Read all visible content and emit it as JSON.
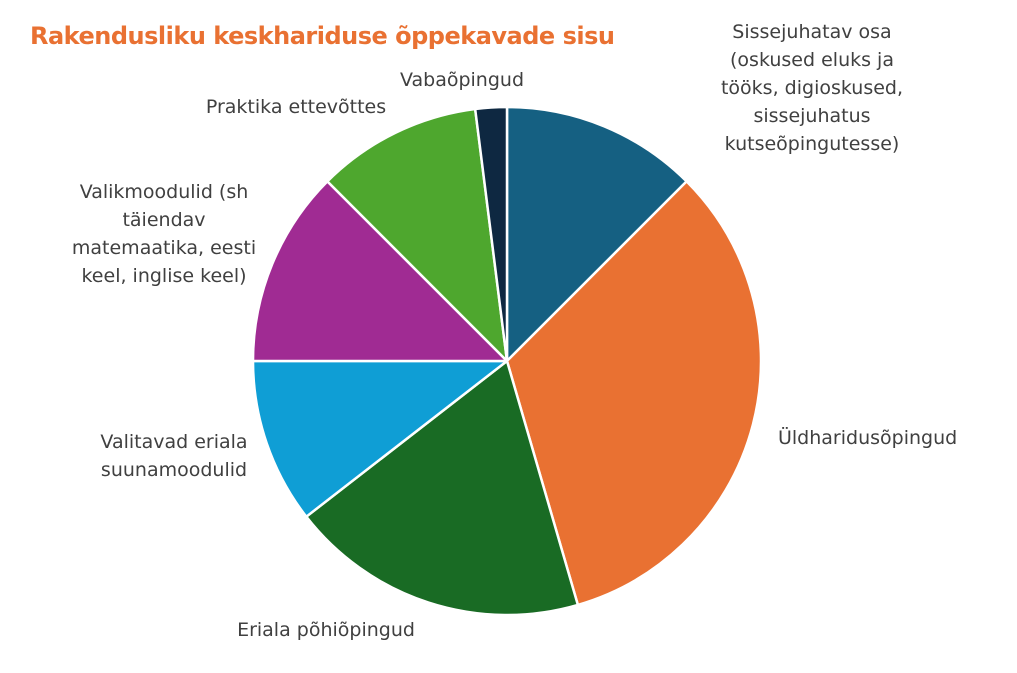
{
  "title": "Rakendusliku keskhariduse õppekavade sisu",
  "colors": {
    "title": "#E97132",
    "slice_border": "#ffffff",
    "label_text": "#404040"
  },
  "chart_data": {
    "type": "pie",
    "title": "Rakendusliku keskhariduse õppekavade sisu",
    "start_angle_deg": 0,
    "direction": "clockwise",
    "legend": "none",
    "slices": [
      {
        "label": "Sissejuhatav osa (oskused eluks ja tööks, digioskused, sissejuhatus kutseõpingutesse)",
        "value": 12.5,
        "color": "#156082"
      },
      {
        "label": "Üldharidusõpingud",
        "value": 33.0,
        "color": "#E97132"
      },
      {
        "label": "Eriala põhiõpingud",
        "value": 19.0,
        "color": "#196B24"
      },
      {
        "label": "Valitavad eriala suunamoodulid",
        "value": 10.5,
        "color": "#0F9ED5"
      },
      {
        "label": "Valikmoodulid (sh täiendav matemaatika, eesti keel, inglise keel)",
        "value": 12.5,
        "color": "#A02B93"
      },
      {
        "label": "Praktika ettevõttes",
        "value": 10.5,
        "color": "#4EA72E"
      },
      {
        "label": "Vabaõpingud",
        "value": 2.0,
        "color": "#0E2841"
      }
    ]
  },
  "labels": [
    {
      "lines": [
        "Sissejuhatav osa",
        "(oskused eluks ja",
        "tööks, digioskused,",
        "sissejuhatus",
        "kutseõpingutesse)"
      ]
    },
    {
      "lines": [
        "Üldharidusõpingud"
      ]
    },
    {
      "lines": [
        "Eriala põhiõpingud"
      ]
    },
    {
      "lines": [
        "Valitavad eriala",
        "suunamoodulid"
      ]
    },
    {
      "lines": [
        "Valikmoodulid (sh",
        "täiendav",
        "matemaatika, eesti",
        "keel, inglise keel)"
      ]
    },
    {
      "lines": [
        "Praktika ettevõttes"
      ]
    },
    {
      "lines": [
        "Vabaõpingud"
      ]
    }
  ]
}
